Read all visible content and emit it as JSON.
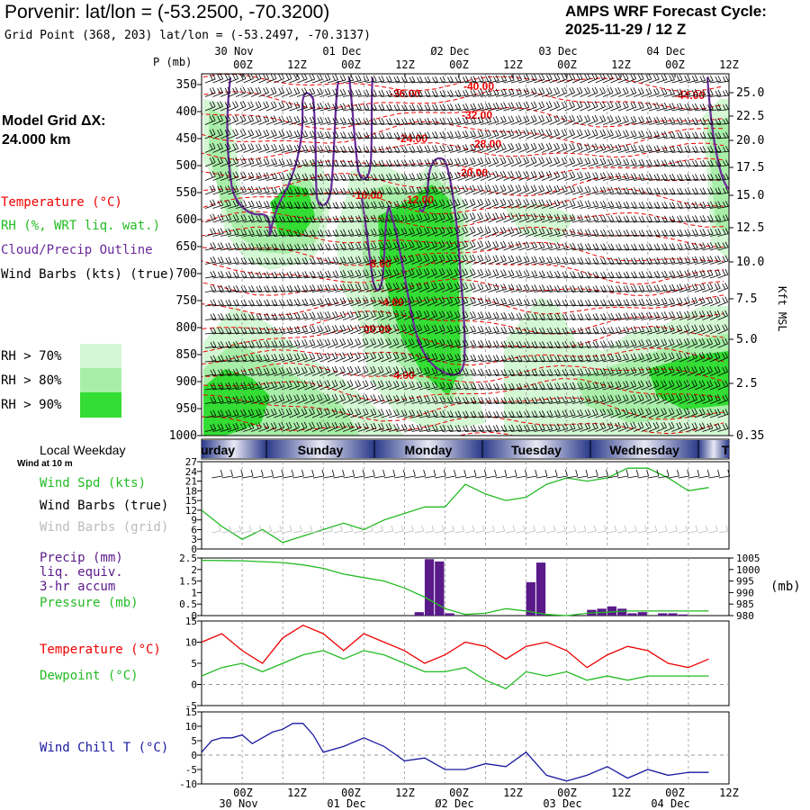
{
  "header": {
    "station_title": "Porvenir:  lat/lon = (-53.2500, -70.3200)",
    "grid_point": "Grid Point (368, 203) lat/lon = (-53.2497, -70.3137)",
    "forecast_title": "AMPS WRF Forecast Cycle:",
    "forecast_cycle": "2025-11-29 / 12  Z",
    "model_grid_label": "Model Grid ΔX:",
    "model_grid_value": " 24.000 km"
  },
  "colors": {
    "temperature": "#ee0000",
    "rh": "#22bb22",
    "cloud": "#6a2a9a",
    "precip": "#5a1a8a",
    "pressure": "#22bb22",
    "windchill": "#1a1aa0",
    "rh70": "#d4f7d4",
    "rh80": "#a8eea8",
    "rh90": "#33dd33",
    "grid_barb": "#bbbbbb"
  },
  "legend": {
    "temperature": "Temperature (°C)",
    "rh": "RH (%, WRT liq. wat.)",
    "cloud": "Cloud/Precip Outline",
    "wind_barbs": "Wind Barbs (kts) (true)",
    "rh_levels": [
      "RH > 70%",
      "RH > 80%",
      "RH > 90%"
    ]
  },
  "time_axis": {
    "ticks": [
      "00Z",
      "12Z",
      "00Z",
      "12Z",
      "Ø2 Dec\n00Z",
      "12Z",
      "00Z",
      "12Z",
      "00Z",
      "12Z"
    ],
    "top_hours": [
      "00Z",
      "12Z",
      "00Z",
      "12Z",
      "00Z",
      "12Z",
      "00Z",
      "12Z",
      "00Z",
      "12Z"
    ],
    "top_dates": [
      "30 Nov",
      "01 Dec",
      "Ø2 Dec",
      "03 Dec",
      "04 Dec"
    ],
    "bottom_hours": [
      "00Z",
      "12Z",
      "00Z",
      "12Z",
      "00Z",
      "12Z",
      "00Z",
      "12Z",
      "00Z",
      "12Z"
    ],
    "bottom_dates": [
      "30 Nov",
      "01 Dec",
      "Ø2 Dec",
      "03 Dec",
      "04 Dec"
    ],
    "weekdays": [
      "urday",
      "Sunday",
      "Monday",
      "Tuesday",
      "Wednesday",
      "T"
    ],
    "weekday_label": "Local Weekday"
  },
  "chart_data": [
    {
      "type": "heatmap",
      "title": "Vertical cross-section (time-height)",
      "ylabel": "P (mb)",
      "y_ticks": [
        350,
        400,
        450,
        500,
        550,
        600,
        650,
        700,
        750,
        800,
        850,
        900,
        950,
        1000
      ],
      "ylim": [
        1000,
        330
      ],
      "right_ylabel": "Kft MSL",
      "right_ticks": [
        "25.0",
        "22.5",
        "20.0",
        "17.5",
        "15.0",
        "12.5",
        "10.0",
        "7.5",
        "5.0",
        "2.5",
        "0.35"
      ],
      "temperature_labels": [
        "-36.00",
        "-40.00",
        "-32.00",
        "-28.00",
        "-24.00",
        "-20.00",
        "-16.00",
        "-12.00",
        "-8.00",
        "-4.00",
        "00.00",
        "4.00",
        "-44.00"
      ]
    },
    {
      "type": "line",
      "title": "Wind at 10 m",
      "ylabel_items": [
        "Wind Spd (kts)",
        "Wind Barbs (true)",
        "Wind Barbs (grid)"
      ],
      "y_ticks": [
        "27",
        "24",
        "21",
        "18",
        "15",
        "12",
        "9",
        "6",
        "3",
        "0"
      ],
      "ylim": [
        0,
        27
      ],
      "x_hours": [
        0,
        6,
        12,
        18,
        24,
        30,
        36,
        42,
        48,
        54,
        60,
        66,
        72,
        78,
        84,
        90,
        96,
        102,
        108,
        114,
        120,
        126,
        132,
        138,
        144,
        150
      ],
      "series": [
        {
          "name": "Wind Spd (kts)",
          "values": [
            12,
            7,
            3,
            6,
            2,
            4,
            6,
            8,
            6,
            9,
            11,
            13,
            13,
            20,
            17,
            15,
            16,
            20,
            22,
            21,
            22,
            25,
            25,
            22,
            18,
            19
          ]
        }
      ]
    },
    {
      "type": "bar",
      "title": "Precip / Pressure",
      "ylabel_items": [
        "Precip (mm)",
        "liq. equiv.",
        "3-hr accum",
        "Pressure (mb)"
      ],
      "y_ticks": [
        "2.5",
        "2",
        "1.5",
        "1",
        "0.5",
        "0"
      ],
      "ylim": [
        0,
        2.5
      ],
      "right_ticks": [
        "1005",
        "1000",
        "995",
        "990",
        "985",
        "980"
      ],
      "right_ylim": [
        980,
        1005
      ],
      "right_label": "(mb)",
      "x_hours": [
        66,
        69,
        72,
        75,
        99,
        102,
        117,
        120,
        123,
        126,
        129,
        132,
        138,
        141,
        144
      ],
      "values": [
        0.15,
        2.45,
        2.35,
        0.1,
        1.45,
        2.3,
        0.25,
        0.3,
        0.4,
        0.3,
        0.1,
        0.15,
        0.1,
        0.1,
        0.05
      ],
      "series": [
        {
          "name": "Pressure (mb)",
          "x_hours": [
            0,
            12,
            24,
            30,
            36,
            42,
            48,
            54,
            60,
            66,
            72,
            78,
            84,
            90,
            96,
            102,
            108,
            114,
            120,
            126,
            132,
            138,
            144,
            150
          ],
          "values": [
            1004,
            1003.8,
            1003,
            1002,
            1000.5,
            998,
            996.5,
            995,
            992,
            988,
            983,
            980.5,
            981,
            983,
            982,
            980.5,
            980,
            981,
            981.5,
            982,
            982,
            982,
            982,
            982
          ]
        }
      ]
    },
    {
      "type": "line",
      "title": "Temperature / Dewpoint",
      "ylabel_items": [
        "Temperature (°C)",
        "Dewpoint (°C)"
      ],
      "y_ticks": [
        "15",
        "10",
        "5",
        "0",
        "-5"
      ],
      "ylim": [
        -5,
        15
      ],
      "x_hours": [
        0,
        6,
        12,
        18,
        24,
        30,
        36,
        42,
        48,
        54,
        60,
        66,
        72,
        78,
        84,
        90,
        96,
        102,
        108,
        114,
        120,
        126,
        132,
        138,
        144,
        150
      ],
      "series": [
        {
          "name": "Temperature (°C)",
          "values": [
            10,
            12,
            8,
            5,
            11,
            14,
            12,
            8,
            12,
            10,
            8,
            5,
            7,
            10,
            9,
            6,
            9,
            10,
            8,
            4,
            7,
            9,
            8,
            5,
            4,
            6
          ]
        },
        {
          "name": "Dewpoint (°C)",
          "values": [
            2,
            4,
            5,
            3,
            5,
            7,
            8,
            6,
            8,
            7,
            5,
            3,
            3,
            4,
            1,
            -1,
            3,
            2,
            3,
            1,
            2,
            1,
            2,
            2,
            2,
            2
          ]
        }
      ]
    },
    {
      "type": "line",
      "title": "Wind Chill",
      "ylabel_items": [
        "Wind Chill T (°C)"
      ],
      "y_ticks": [
        "15",
        "10",
        "5",
        "0",
        "-5",
        "-10"
      ],
      "ylim": [
        -10,
        15
      ],
      "x_hours": [
        0,
        3,
        6,
        9,
        12,
        15,
        18,
        21,
        24,
        27,
        30,
        33,
        36,
        42,
        48,
        54,
        60,
        66,
        72,
        78,
        84,
        90,
        96,
        102,
        108,
        114,
        120,
        126,
        132,
        138,
        144,
        150
      ],
      "series": [
        {
          "name": "Wind Chill T (°C)",
          "values": [
            1,
            5,
            6,
            6,
            7,
            4,
            6,
            8,
            9,
            11,
            11,
            7,
            1,
            3,
            6,
            3,
            -2,
            -1,
            -5,
            -5,
            -3,
            -4,
            1,
            -7,
            -9,
            -7,
            -4,
            -8,
            -5,
            -7,
            -6,
            -6
          ]
        }
      ]
    }
  ]
}
